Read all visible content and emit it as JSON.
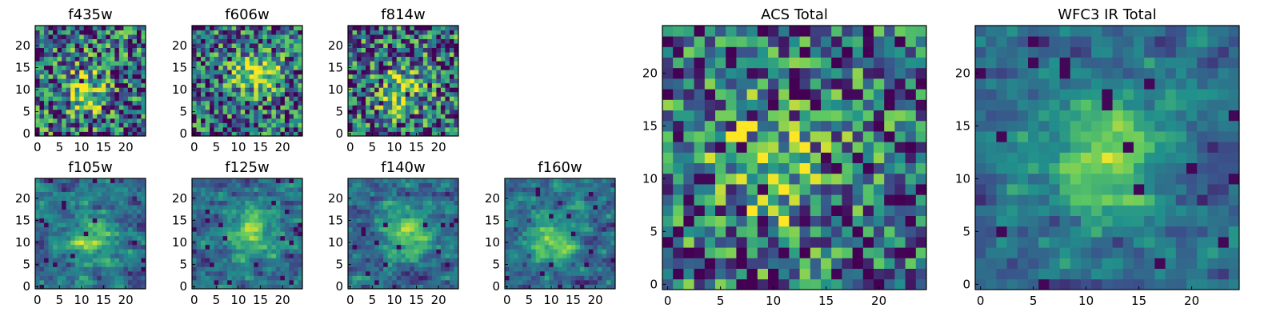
{
  "figure": {
    "colormap": "viridis",
    "colors": [
      "#440154",
      "#3b528b",
      "#21918c",
      "#5ec962",
      "#fde725"
    ],
    "axis_color": "#000000",
    "background": "#ffffff"
  },
  "chart_data": [
    {
      "type": "heatmap",
      "title": "f435w",
      "grid_size": 25,
      "x_ticks": [
        0,
        5,
        10,
        15,
        20
      ],
      "y_ticks": [
        0,
        5,
        10,
        15,
        20
      ],
      "xlim": [
        -0.5,
        24.5
      ],
      "ylim": [
        -0.5,
        24.5
      ]
    },
    {
      "type": "heatmap",
      "title": "f606w",
      "grid_size": 25,
      "x_ticks": [
        0,
        5,
        10,
        15,
        20
      ],
      "y_ticks": [
        0,
        5,
        10,
        15,
        20
      ],
      "xlim": [
        -0.5,
        24.5
      ],
      "ylim": [
        -0.5,
        24.5
      ]
    },
    {
      "type": "heatmap",
      "title": "f814w",
      "grid_size": 25,
      "x_ticks": [
        0,
        5,
        10,
        15,
        20
      ],
      "y_ticks": [
        0,
        5,
        10,
        15,
        20
      ],
      "xlim": [
        -0.5,
        24.5
      ],
      "ylim": [
        -0.5,
        24.5
      ]
    },
    {
      "type": "heatmap",
      "title": "f105w",
      "grid_size": 25,
      "x_ticks": [
        0,
        5,
        10,
        15,
        20
      ],
      "y_ticks": [
        0,
        5,
        10,
        15,
        20
      ],
      "xlim": [
        -0.5,
        24.5
      ],
      "ylim": [
        -0.5,
        24.5
      ]
    },
    {
      "type": "heatmap",
      "title": "f125w",
      "grid_size": 25,
      "x_ticks": [
        0,
        5,
        10,
        15,
        20
      ],
      "y_ticks": [
        0,
        5,
        10,
        15,
        20
      ],
      "xlim": [
        -0.5,
        24.5
      ],
      "ylim": [
        -0.5,
        24.5
      ]
    },
    {
      "type": "heatmap",
      "title": "f140w",
      "grid_size": 25,
      "x_ticks": [
        0,
        5,
        10,
        15,
        20
      ],
      "y_ticks": [
        0,
        5,
        10,
        15,
        20
      ],
      "xlim": [
        -0.5,
        24.5
      ],
      "ylim": [
        -0.5,
        24.5
      ]
    },
    {
      "type": "heatmap",
      "title": "f160w",
      "grid_size": 25,
      "x_ticks": [
        0,
        5,
        10,
        15,
        20
      ],
      "y_ticks": [
        0,
        5,
        10,
        15,
        20
      ],
      "xlim": [
        -0.5,
        24.5
      ],
      "ylim": [
        -0.5,
        24.5
      ]
    },
    {
      "type": "heatmap",
      "title": "ACS Total",
      "grid_size": 25,
      "x_ticks": [
        0,
        5,
        10,
        15,
        20
      ],
      "y_ticks": [
        0,
        5,
        10,
        15,
        20
      ],
      "xlim": [
        -0.5,
        24.5
      ],
      "ylim": [
        -0.5,
        24.5
      ]
    },
    {
      "type": "heatmap",
      "title": "WFC3 IR Total",
      "grid_size": 25,
      "x_ticks": [
        0,
        5,
        10,
        15,
        20
      ],
      "y_ticks": [
        0,
        5,
        10,
        15,
        20
      ],
      "xlim": [
        -0.5,
        24.5
      ],
      "ylim": [
        -0.5,
        24.5
      ]
    }
  ]
}
